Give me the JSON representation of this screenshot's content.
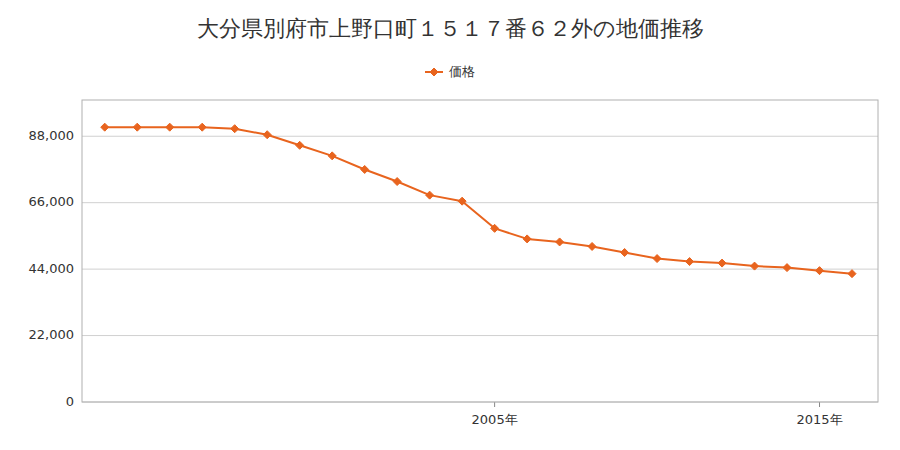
{
  "chart_data": {
    "type": "line",
    "title": "大分県別府市上野口町１５１７番６２外の地価推移",
    "x": [
      1993,
      1994,
      1995,
      1996,
      1997,
      1998,
      1999,
      2000,
      2001,
      2002,
      2003,
      2004,
      2005,
      2006,
      2007,
      2008,
      2009,
      2010,
      2011,
      2012,
      2013,
      2014,
      2015,
      2016
    ],
    "series": [
      {
        "name": "価格",
        "color": "#E8641E",
        "marker": "diamond",
        "values": [
          91000,
          91000,
          91000,
          91000,
          90500,
          88500,
          85000,
          81500,
          77000,
          73000,
          68500,
          66500,
          57500,
          54000,
          53000,
          51500,
          49500,
          47500,
          46500,
          46000,
          45000,
          44500,
          43500,
          42500
        ]
      }
    ],
    "xlim": [
      1992.3,
      2016.8
    ],
    "xticks": [
      {
        "value": 2005,
        "label": "2005年"
      },
      {
        "value": 2015,
        "label": "2015年"
      }
    ],
    "ylim": [
      0,
      100000
    ],
    "yticks": [
      0,
      {
        "value": 22000,
        "label": "22,000"
      },
      {
        "value": 44000,
        "label": "44,000"
      },
      {
        "value": 66000,
        "label": "66,000"
      },
      {
        "value": 88000,
        "label": "88,000"
      }
    ],
    "grid": "y",
    "legend": "top"
  }
}
